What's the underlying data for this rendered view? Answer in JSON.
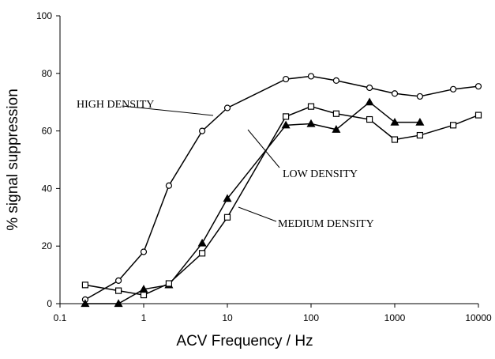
{
  "chart_data": {
    "type": "line",
    "x_label": "ACV Frequency / Hz",
    "y_label": "% signal suppression",
    "log_x": true,
    "xlim": [
      0.1,
      10000
    ],
    "xticks": [
      0.1,
      1,
      10,
      100,
      1000,
      10000
    ],
    "ylim": [
      0,
      100
    ],
    "yticks": [
      0,
      20,
      40,
      60,
      80,
      100
    ],
    "series": [
      {
        "name": "HIGH DENSITY",
        "color": "#000",
        "marker": "open-circle",
        "x": [
          0.2,
          0.5,
          1,
          2,
          5,
          10,
          50,
          100,
          200,
          500,
          1000,
          2000,
          5000,
          10000
        ],
        "values": [
          1.4,
          8,
          18,
          41,
          60,
          68,
          78,
          79,
          77.5,
          75,
          73,
          72,
          74.5,
          75.5
        ]
      },
      {
        "name": "LOW DENSITY",
        "color": "#000",
        "marker": "filled-triangle",
        "x": [
          0.2,
          0.5,
          1,
          2,
          5,
          10,
          50,
          100,
          200,
          500,
          1000,
          2000
        ],
        "values": [
          0,
          0,
          5,
          6.5,
          21,
          36.5,
          62,
          62.5,
          60.5,
          70,
          63,
          63
        ]
      },
      {
        "name": "MEDIUM DENSITY",
        "color": "#000",
        "marker": "open-square",
        "x": [
          0.2,
          0.5,
          1,
          2,
          5,
          10,
          50,
          100,
          200,
          500,
          1000,
          2000,
          5000,
          10000
        ],
        "values": [
          6.5,
          4.5,
          3,
          7,
          17.5,
          30,
          65,
          68.5,
          66,
          64,
          57,
          58.5,
          62,
          65.5
        ]
      }
    ]
  }
}
